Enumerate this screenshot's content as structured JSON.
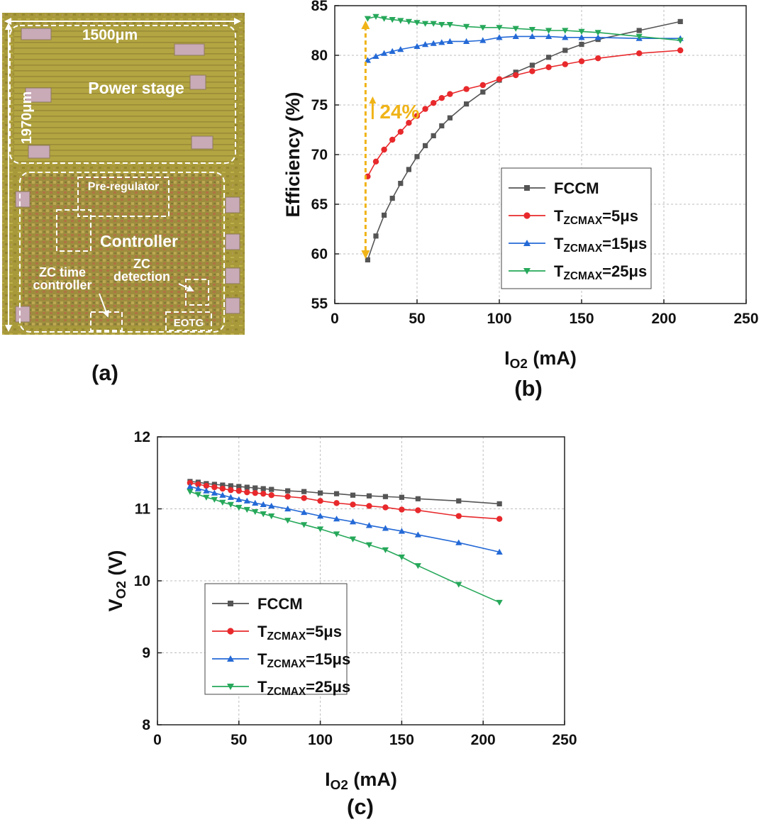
{
  "panel_labels": {
    "a": "(a)",
    "b": "(b)",
    "c": "(c)"
  },
  "die_photo": {
    "width_label": "1500μm",
    "height_label": "1970μm",
    "power_stage": "Power stage",
    "pre_regulator": "Pre-regulator",
    "controller": "Controller",
    "zc_time_line1": "ZC time",
    "zc_time_line2": "controller",
    "zc_detection_line1": "ZC",
    "zc_detection_line2": "detection",
    "eotg": "EOTG"
  },
  "colors": {
    "FCCM": "#555555",
    "T5": "#e8292c",
    "T15": "#2469d6",
    "T25": "#26a85a",
    "annotation": "#f0b418"
  },
  "chart_data": [
    {
      "id": "b",
      "type": "line",
      "title": "",
      "xlabel": "I",
      "xlabel_sub": "O2",
      "xlabel_unit": " (mA)",
      "ylabel": "Efficiency (%)",
      "xlim": [
        0,
        250
      ],
      "ylim": [
        55,
        85
      ],
      "xticks": [
        0,
        50,
        100,
        150,
        200,
        250
      ],
      "yticks": [
        55,
        60,
        65,
        70,
        75,
        80,
        85
      ],
      "legend_position": "center-right",
      "annotation": {
        "text": "24%",
        "x": 20,
        "y_low": 59.5,
        "y_high": 83.5
      },
      "series": [
        {
          "name": "FCCM",
          "label": {
            "main": "FCCM"
          },
          "marker": "square",
          "color": "#555555",
          "x": [
            20,
            25,
            30,
            35,
            40,
            45,
            50,
            55,
            60,
            65,
            70,
            80,
            90,
            100,
            110,
            120,
            130,
            140,
            150,
            160,
            185,
            210
          ],
          "y": [
            59.4,
            61.8,
            63.9,
            65.6,
            67.1,
            68.5,
            69.8,
            70.9,
            71.9,
            72.9,
            73.7,
            75.1,
            76.3,
            77.5,
            78.3,
            79.0,
            79.8,
            80.5,
            81.1,
            81.6,
            82.5,
            83.4
          ]
        },
        {
          "name": "TZCMAX=5μs",
          "label": {
            "main": "T",
            "sub": "ZCMAX",
            "rest": "=5μs"
          },
          "marker": "circle",
          "color": "#e8292c",
          "x": [
            20,
            25,
            30,
            35,
            40,
            45,
            50,
            55,
            60,
            65,
            70,
            80,
            90,
            100,
            110,
            120,
            130,
            140,
            150,
            160,
            185,
            210
          ],
          "y": [
            67.8,
            69.3,
            70.5,
            71.5,
            72.3,
            73.2,
            73.9,
            74.6,
            75.2,
            75.7,
            76.1,
            76.6,
            77.0,
            77.6,
            78.0,
            78.4,
            78.8,
            79.1,
            79.4,
            79.7,
            80.2,
            80.5
          ]
        },
        {
          "name": "TZCMAX=15μs",
          "label": {
            "main": "T",
            "sub": "ZCMAX",
            "rest": "=15μs"
          },
          "marker": "triangle-up",
          "color": "#2469d6",
          "x": [
            20,
            25,
            30,
            35,
            40,
            50,
            55,
            60,
            65,
            70,
            80,
            90,
            100,
            110,
            120,
            130,
            140,
            150,
            160,
            185,
            210
          ],
          "y": [
            79.5,
            79.9,
            80.2,
            80.4,
            80.6,
            80.9,
            81.1,
            81.2,
            81.3,
            81.4,
            81.4,
            81.5,
            81.8,
            81.9,
            81.9,
            81.9,
            81.8,
            81.8,
            81.8,
            81.7,
            81.7
          ]
        },
        {
          "name": "TZCMAX=25μs",
          "label": {
            "main": "T",
            "sub": "ZCMAX",
            "rest": "=25μs"
          },
          "marker": "triangle-down",
          "color": "#26a85a",
          "x": [
            20,
            25,
            30,
            35,
            40,
            45,
            50,
            55,
            60,
            65,
            70,
            80,
            90,
            100,
            110,
            120,
            130,
            140,
            150,
            160,
            185,
            210
          ],
          "y": [
            83.7,
            83.9,
            83.7,
            83.6,
            83.5,
            83.4,
            83.3,
            83.2,
            83.2,
            83.1,
            83.1,
            82.9,
            82.8,
            82.8,
            82.7,
            82.6,
            82.5,
            82.5,
            82.4,
            82.3,
            81.9,
            81.5
          ]
        }
      ]
    },
    {
      "id": "c",
      "type": "line",
      "title": "",
      "xlabel": "I",
      "xlabel_sub": "O2",
      "xlabel_unit": " (mA)",
      "ylabel": "V",
      "ylabel_sub": "O2",
      "ylabel_unit": " (V)",
      "xlim": [
        0,
        250
      ],
      "ylim": [
        8,
        12
      ],
      "xticks": [
        0,
        50,
        100,
        150,
        200,
        250
      ],
      "yticks": [
        8,
        9,
        10,
        11,
        12
      ],
      "legend_position": "bottom-left",
      "series": [
        {
          "name": "FCCM",
          "label": {
            "main": "FCCM"
          },
          "marker": "square",
          "color": "#555555",
          "x": [
            20,
            25,
            30,
            35,
            40,
            45,
            50,
            55,
            60,
            65,
            70,
            80,
            90,
            100,
            110,
            120,
            130,
            140,
            150,
            160,
            185,
            210
          ],
          "y": [
            11.38,
            11.37,
            11.35,
            11.34,
            11.33,
            11.32,
            11.31,
            11.3,
            11.29,
            11.28,
            11.27,
            11.25,
            11.24,
            11.22,
            11.21,
            11.19,
            11.18,
            11.17,
            11.16,
            11.14,
            11.11,
            11.07
          ]
        },
        {
          "name": "TZCMAX=5μs",
          "label": {
            "main": "T",
            "sub": "ZCMAX",
            "rest": "=5μs"
          },
          "marker": "circle",
          "color": "#e8292c",
          "x": [
            20,
            25,
            30,
            35,
            40,
            45,
            50,
            55,
            60,
            65,
            70,
            80,
            90,
            100,
            110,
            120,
            130,
            140,
            150,
            160,
            185,
            210
          ],
          "y": [
            11.36,
            11.34,
            11.32,
            11.3,
            11.28,
            11.26,
            11.25,
            11.23,
            11.22,
            11.21,
            11.19,
            11.17,
            11.15,
            11.11,
            11.08,
            11.06,
            11.04,
            11.02,
            10.99,
            10.98,
            10.9,
            10.86
          ]
        },
        {
          "name": "TZCMAX=15μs",
          "label": {
            "main": "T",
            "sub": "ZCMAX",
            "rest": "=15μs"
          },
          "marker": "triangle-up",
          "color": "#2469d6",
          "x": [
            20,
            25,
            30,
            35,
            40,
            45,
            50,
            55,
            60,
            65,
            70,
            80,
            90,
            100,
            110,
            120,
            130,
            140,
            150,
            160,
            185,
            210
          ],
          "y": [
            11.31,
            11.28,
            11.25,
            11.22,
            11.19,
            11.16,
            11.13,
            11.11,
            11.08,
            11.06,
            11.04,
            11.0,
            10.95,
            10.9,
            10.86,
            10.82,
            10.77,
            10.73,
            10.69,
            10.64,
            10.53,
            10.4
          ]
        },
        {
          "name": "TZCMAX=25μs",
          "label": {
            "main": "T",
            "sub": "ZCMAX",
            "rest": "=25μs"
          },
          "marker": "triangle-down",
          "color": "#26a85a",
          "x": [
            20,
            25,
            30,
            35,
            40,
            45,
            50,
            55,
            60,
            65,
            70,
            80,
            90,
            100,
            110,
            120,
            130,
            140,
            150,
            160,
            185,
            210
          ],
          "y": [
            11.24,
            11.2,
            11.16,
            11.13,
            11.09,
            11.06,
            11.02,
            10.99,
            10.96,
            10.93,
            10.9,
            10.84,
            10.78,
            10.72,
            10.65,
            10.58,
            10.5,
            10.43,
            10.33,
            10.21,
            9.95,
            9.7
          ]
        }
      ]
    }
  ]
}
